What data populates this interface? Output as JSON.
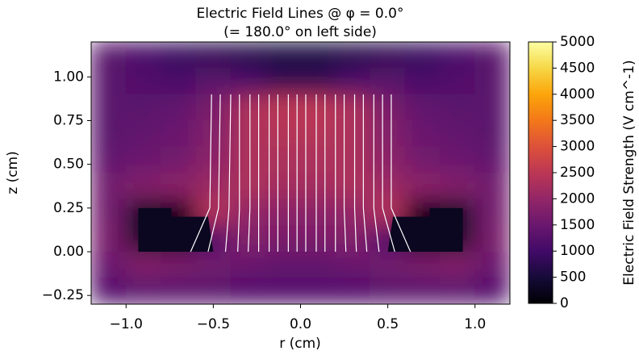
{
  "chart_data": {
    "type": "heatmap",
    "title": "Electric Field Lines @ φ = 0.0°",
    "subtitle": "(= 180.0° on left side)",
    "xlabel": "r (cm)",
    "ylabel": "z (cm)",
    "colorbar_label": "Electric Field Strength (V cm^-1)",
    "cmap": "inferno",
    "xlim": [
      -1.2,
      1.2
    ],
    "ylim": [
      -0.3,
      1.2
    ],
    "clim": [
      0,
      5000
    ],
    "xticks": [
      {
        "value": -1,
        "label": "−1.0"
      },
      {
        "value": -0.5,
        "label": "−0.5"
      },
      {
        "value": 0,
        "label": "0.0"
      },
      {
        "value": 0.5,
        "label": "0.5"
      },
      {
        "value": 1,
        "label": "1.0"
      }
    ],
    "yticks": [
      {
        "value": -0.25,
        "label": "−0.25"
      },
      {
        "value": 0,
        "label": "0.00"
      },
      {
        "value": 0.25,
        "label": "0.25"
      },
      {
        "value": 0.5,
        "label": "0.50"
      },
      {
        "value": 0.75,
        "label": "0.75"
      },
      {
        "value": 1,
        "label": "1.00"
      }
    ],
    "cticks": [
      0,
      500,
      1000,
      1500,
      2000,
      2500,
      3000,
      3500,
      4000,
      4500,
      5000
    ],
    "x": [
      -1.1,
      -0.9,
      -0.7,
      -0.5,
      -0.3,
      -0.1,
      0.1,
      0.3,
      0.5,
      0.7,
      0.9,
      1.1
    ],
    "y": [
      1.125,
      0.975,
      0.825,
      0.675,
      0.525,
      0.375,
      0.225,
      0.075,
      -0.075,
      -0.225
    ],
    "z": [
      [
        1300,
        1100,
        900,
        800,
        700,
        600,
        600,
        700,
        800,
        900,
        1100,
        1300
      ],
      [
        1300,
        1200,
        1100,
        1300,
        1100,
        800,
        800,
        1100,
        1300,
        1100,
        1200,
        1300
      ],
      [
        1300,
        1300,
        1400,
        1700,
        2300,
        2500,
        2500,
        2300,
        1700,
        1400,
        1300,
        1300
      ],
      [
        1300,
        1400,
        1500,
        1800,
        2300,
        2400,
        2400,
        2300,
        1800,
        1500,
        1400,
        1300
      ],
      [
        1400,
        1500,
        1600,
        1900,
        2300,
        2300,
        2300,
        2300,
        1900,
        1600,
        1500,
        1400
      ],
      [
        1600,
        1800,
        1900,
        2100,
        2300,
        2200,
        2200,
        2300,
        2100,
        1900,
        1800,
        1600
      ],
      [
        1600,
        300,
        200,
        2400,
        2000,
        1900,
        1900,
        2000,
        2400,
        200,
        300,
        1600
      ],
      [
        1700,
        300,
        100,
        1200,
        1800,
        1700,
        1700,
        1800,
        1200,
        100,
        300,
        1700
      ],
      [
        1500,
        1800,
        1700,
        1600,
        1500,
        1400,
        1400,
        1500,
        1600,
        1700,
        1800,
        1500
      ],
      [
        1200,
        1300,
        1300,
        1300,
        1200,
        1200,
        1200,
        1200,
        1300,
        1300,
        1300,
        1200
      ]
    ],
    "field_lines": [
      {
        "r": [
          -0.63,
          -0.52,
          -0.51
        ],
        "z": [
          0,
          0.25,
          0.9
        ]
      },
      {
        "r": [
          -0.53,
          -0.47,
          -0.46
        ],
        "z": [
          0,
          0.25,
          0.9
        ]
      },
      {
        "r": [
          -0.43,
          -0.41,
          -0.4
        ],
        "z": [
          0,
          0.25,
          0.9
        ]
      },
      {
        "r": [
          -0.36,
          -0.35,
          -0.35
        ],
        "z": [
          0,
          0.25,
          0.9
        ]
      },
      {
        "r": [
          -0.3,
          -0.29,
          -0.29
        ],
        "z": [
          0,
          0.25,
          0.9
        ]
      },
      {
        "r": [
          -0.24,
          -0.24,
          -0.24
        ],
        "z": [
          0,
          0.25,
          0.9
        ]
      },
      {
        "r": [
          -0.18,
          -0.18,
          -0.18
        ],
        "z": [
          0,
          0.25,
          0.9
        ]
      },
      {
        "r": [
          -0.13,
          -0.13,
          -0.13
        ],
        "z": [
          0,
          0.25,
          0.9
        ]
      },
      {
        "r": [
          -0.07,
          -0.07,
          -0.07
        ],
        "z": [
          0,
          0.25,
          0.9
        ]
      },
      {
        "r": [
          -0.02,
          -0.02,
          -0.02
        ],
        "z": [
          0,
          0.25,
          0.9
        ]
      },
      {
        "r": [
          0.03,
          0.03,
          0.03
        ],
        "z": [
          0,
          0.25,
          0.9
        ]
      },
      {
        "r": [
          0.09,
          0.09,
          0.09
        ],
        "z": [
          0,
          0.25,
          0.9
        ]
      },
      {
        "r": [
          0.14,
          0.14,
          0.14
        ],
        "z": [
          0,
          0.25,
          0.9
        ]
      },
      {
        "r": [
          0.2,
          0.2,
          0.2
        ],
        "z": [
          0,
          0.25,
          0.9
        ]
      },
      {
        "r": [
          0.26,
          0.25,
          0.25
        ],
        "z": [
          0,
          0.25,
          0.9
        ]
      },
      {
        "r": [
          0.32,
          0.31,
          0.31
        ],
        "z": [
          0,
          0.25,
          0.9
        ]
      },
      {
        "r": [
          0.38,
          0.36,
          0.36
        ],
        "z": [
          0,
          0.25,
          0.9
        ]
      },
      {
        "r": [
          0.45,
          0.42,
          0.42
        ],
        "z": [
          0,
          0.25,
          0.9
        ]
      },
      {
        "r": [
          0.54,
          0.47,
          0.47
        ],
        "z": [
          0,
          0.25,
          0.9
        ]
      },
      {
        "r": [
          0.63,
          0.52,
          0.52
        ],
        "z": [
          0,
          0.25,
          0.9
        ]
      }
    ]
  }
}
